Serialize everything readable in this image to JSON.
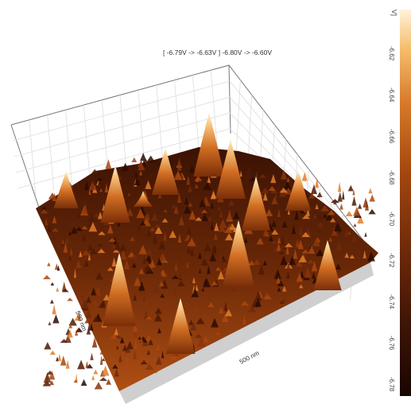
{
  "chart_data": {
    "type": "surface-3d",
    "title": "[ -6.79V  ->  -6.63V ] -6.80V  ->  -6.60V",
    "x_axis_label": "500 nm",
    "y_axis_label": "500 nm",
    "colorbar": {
      "unit": "V]",
      "ticks": [
        "-6.62",
        "-6.64",
        "-6.66",
        "-6.68",
        "-6.70",
        "-6.72",
        "-6.74",
        "-6.76",
        "-6.78"
      ],
      "range": [
        -6.8,
        -6.6
      ],
      "colors": [
        "#180600",
        "#3d1406",
        "#6e2a0a",
        "#a4470f",
        "#d87a2a",
        "#f5be6e",
        "#fff3da"
      ]
    },
    "surface_colors": {
      "low": "#2a0c02",
      "mid": "#8a360b",
      "high": "#e07d2a",
      "peak": "#fff0d2",
      "base_shadow": "#cfcfcf"
    },
    "grid": true,
    "peaks_count": 12
  }
}
